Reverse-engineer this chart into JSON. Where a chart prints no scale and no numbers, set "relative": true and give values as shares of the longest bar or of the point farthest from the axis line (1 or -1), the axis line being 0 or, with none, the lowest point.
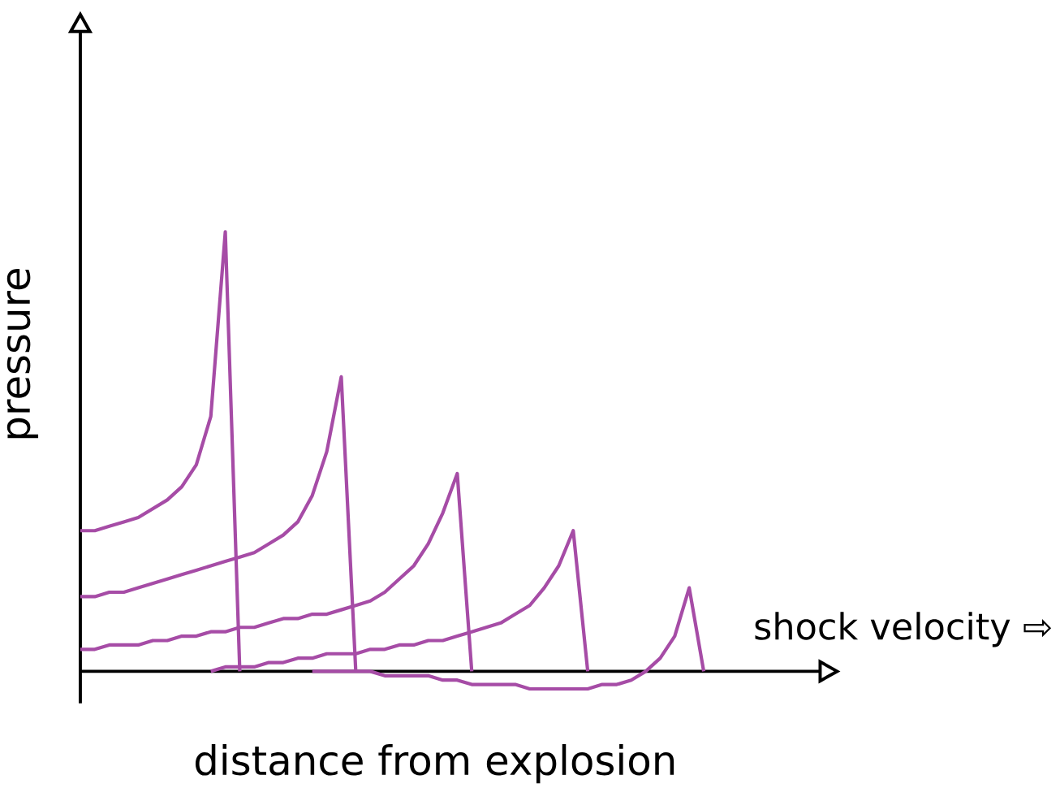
{
  "chart_data": {
    "type": "line",
    "relative": true,
    "xlabel": "distance from explosion",
    "ylabel": "pressure",
    "annotations": [
      "shock velocity ⇨"
    ],
    "categories": [
      null,
      null,
      null,
      null,
      null,
      null,
      null,
      null,
      null,
      null,
      null,
      null,
      null,
      null,
      null,
      null,
      null,
      null,
      null,
      null,
      null,
      null,
      null,
      null,
      null,
      null,
      null,
      null,
      null,
      null,
      null,
      null,
      null,
      null,
      null,
      null,
      null,
      null,
      null,
      null,
      null,
      null,
      null,
      null
    ],
    "marker": "none",
    "line_style": "solid",
    "series": [
      {
        "color": "#a64ca6",
        "values": [
          0.32,
          0.32,
          0.33,
          0.34,
          0.35,
          0.37,
          0.39,
          0.42,
          0.47,
          0.58,
          1.0,
          0,
          null,
          null,
          null,
          null,
          null,
          null,
          null,
          null,
          null,
          null,
          null,
          null,
          null,
          null,
          null,
          null,
          null,
          null,
          null,
          null,
          null,
          null,
          null,
          null,
          null,
          null,
          null,
          null,
          null,
          null,
          null,
          null
        ]
      },
      {
        "color": "#a64ca6",
        "values": [
          0.17,
          0.17,
          0.18,
          0.18,
          0.19,
          0.2,
          0.21,
          0.22,
          0.23,
          0.24,
          0.25,
          0.26,
          0.27,
          0.29,
          0.31,
          0.34,
          0.4,
          0.5,
          0.67,
          0,
          null,
          null,
          null,
          null,
          null,
          null,
          null,
          null,
          null,
          null,
          null,
          null,
          null,
          null,
          null,
          null,
          null,
          null,
          null,
          null,
          null,
          null,
          null,
          null
        ]
      },
      {
        "color": "#a64ca6",
        "values": [
          0.05,
          0.05,
          0.06,
          0.06,
          0.06,
          0.07,
          0.07,
          0.08,
          0.08,
          0.09,
          0.09,
          0.1,
          0.1,
          0.11,
          0.12,
          0.12,
          0.13,
          0.13,
          0.14,
          0.15,
          0.16,
          0.18,
          0.21,
          0.24,
          0.29,
          0.36,
          0.45,
          0,
          null,
          null,
          null,
          null,
          null,
          null,
          null,
          null,
          null,
          null,
          null,
          null,
          null,
          null,
          null,
          null
        ]
      },
      {
        "color": "#a64ca6",
        "values": [
          null,
          null,
          null,
          null,
          null,
          null,
          null,
          null,
          null,
          0,
          0.01,
          0.01,
          0.01,
          0.02,
          0.02,
          0.03,
          0.03,
          0.04,
          0.04,
          0.04,
          0.05,
          0.05,
          0.06,
          0.06,
          0.07,
          0.07,
          0.08,
          0.09,
          0.1,
          0.11,
          0.13,
          0.15,
          0.19,
          0.24,
          0.32,
          0,
          null,
          null,
          null,
          null,
          null,
          null,
          null,
          null
        ]
      },
      {
        "color": "#a64ca6",
        "values": [
          null,
          null,
          null,
          null,
          null,
          null,
          null,
          null,
          null,
          null,
          null,
          null,
          null,
          null,
          null,
          null,
          0,
          0,
          0,
          0,
          0,
          -0.01,
          -0.01,
          -0.01,
          -0.01,
          -0.02,
          -0.02,
          -0.03,
          -0.03,
          -0.03,
          -0.03,
          -0.04,
          -0.04,
          -0.04,
          -0.04,
          -0.04,
          -0.03,
          -0.03,
          -0.02,
          0,
          0.03,
          0.08,
          0.19,
          0
        ]
      }
    ]
  }
}
